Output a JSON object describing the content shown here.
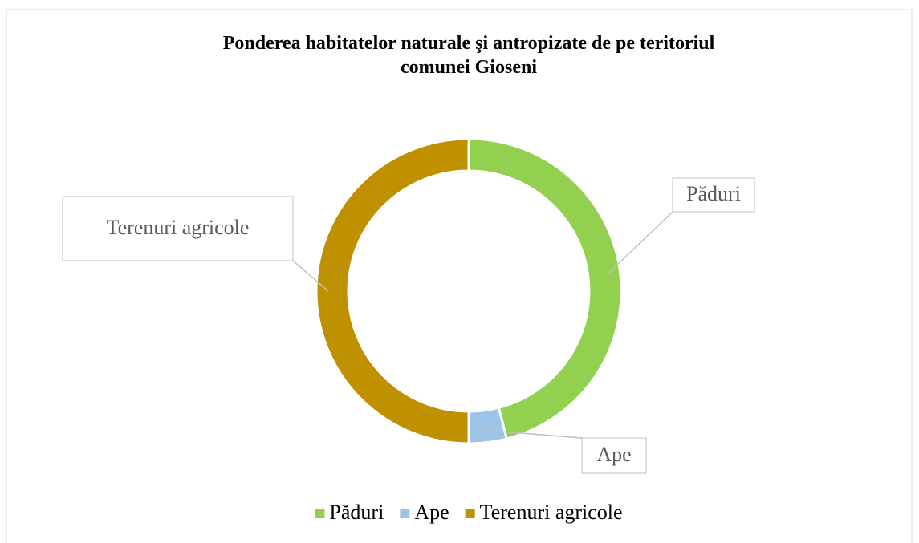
{
  "chart_data": {
    "type": "donut",
    "title": "Ponderea habitatelor naturale şi antropizate de pe teritoriul comunei Gioseni",
    "categories": [
      "Păduri",
      "Ape",
      "Terenuri agricole"
    ],
    "values": [
      46,
      4,
      50
    ],
    "colors": [
      "#92d050",
      "#9dc3e6",
      "#bf9000"
    ],
    "legend": "bottom"
  }
}
